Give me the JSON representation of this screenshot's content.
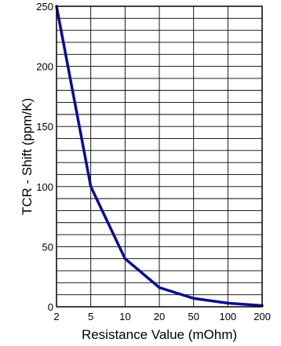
{
  "chart_data": {
    "type": "line",
    "xlabel": "Resistance Value (mOhm)",
    "ylabel": "TCR - Shift (ppm/K)",
    "x_categories": [
      "2",
      "5",
      "10",
      "20",
      "50",
      "100",
      "200"
    ],
    "yticks": [
      0,
      50,
      100,
      150,
      200,
      250
    ],
    "ylim": [
      0,
      250
    ],
    "grid": true,
    "series": [
      {
        "x": [
          "2",
          "5",
          "10",
          "20",
          "50",
          "100",
          "200"
        ],
        "y": [
          250,
          100,
          40,
          16,
          7,
          3,
          1
        ]
      }
    ],
    "colors": {
      "line": "#0d0d8c",
      "grid": "#000000"
    }
  }
}
